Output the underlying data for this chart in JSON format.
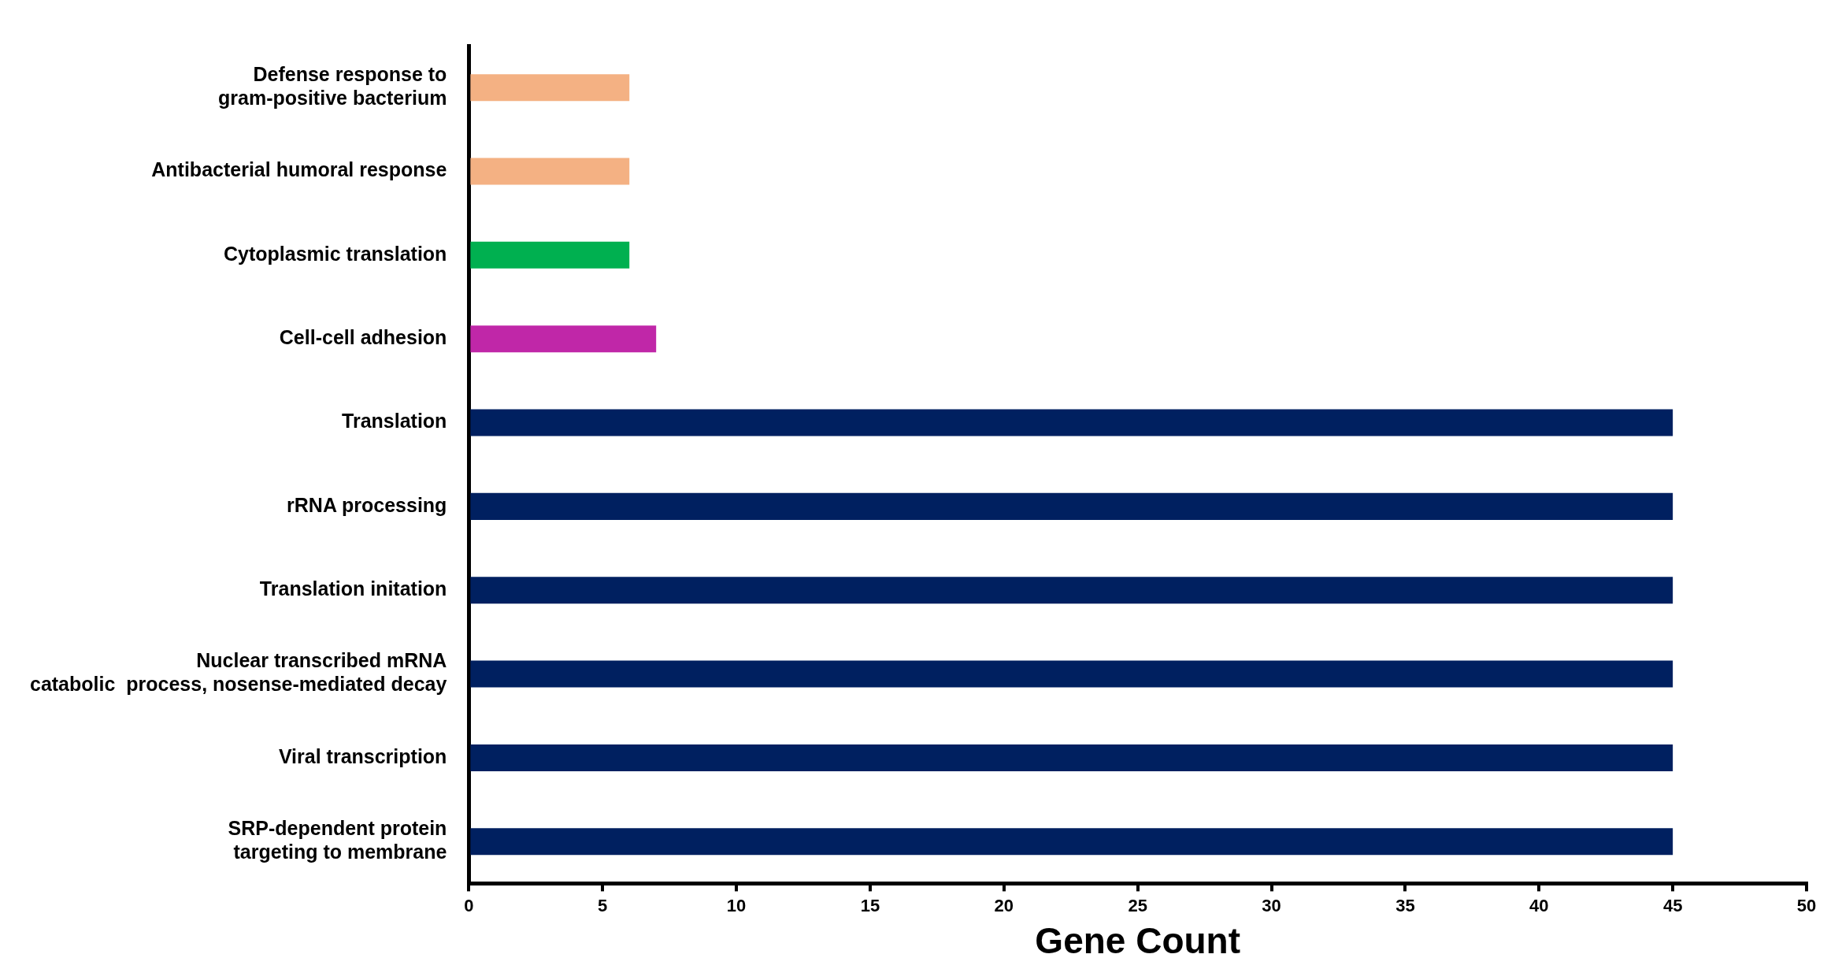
{
  "chart_data": {
    "type": "bar",
    "orientation": "horizontal",
    "xlabel": "Gene Count",
    "categories": [
      "Defense response to\ngram-positive bacterium",
      "Antibacterial humoral response",
      "Cytoplasmic translation",
      "Cell-cell adhesion",
      "Translation",
      "rRNA processing",
      "Translation initation",
      "Nuclear transcribed mRNA\ncatabolic  process, nosense-mediated decay",
      "Viral transcription",
      "SRP-dependent protein\ntargeting to membrane"
    ],
    "values": [
      6,
      6,
      6,
      7,
      45,
      45,
      45,
      45,
      45,
      45
    ],
    "colors": [
      "#f4b183",
      "#f4b183",
      "#00b050",
      "#c027a8",
      "#002060",
      "#002060",
      "#002060",
      "#002060",
      "#002060",
      "#002060"
    ],
    "xlim": [
      0,
      50
    ],
    "xticks": [
      0,
      5,
      10,
      15,
      20,
      25,
      30,
      35,
      40,
      45,
      50
    ],
    "grid": false,
    "legend": false
  }
}
